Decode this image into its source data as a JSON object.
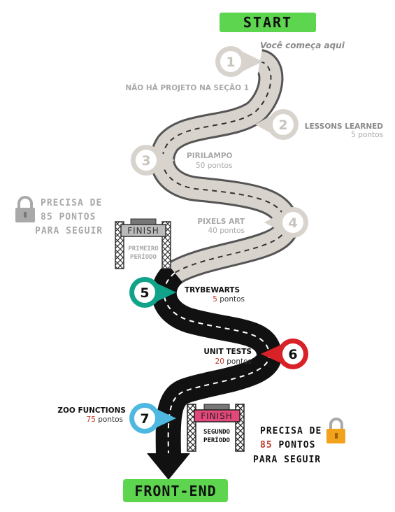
{
  "start_label": "START",
  "end_label": "FRONT-END",
  "intro": "Você começa aqui",
  "steps": [
    {
      "num": "1",
      "title": "NÃO HÁ PROJETO NA SEÇÃO 1",
      "points": "",
      "color": "#d8d4cd"
    },
    {
      "num": "2",
      "title": "LESSONS LEARNED",
      "points": "5 pontos",
      "color": "#d8d4cd"
    },
    {
      "num": "3",
      "title": "PIRILAMPO",
      "points": "50 pontos",
      "color": "#d8d4cd"
    },
    {
      "num": "4",
      "title": "PIXELS ART",
      "points": "40 pontos",
      "color": "#d8d4cd"
    },
    {
      "num": "5",
      "title": "TRYBEWARTS",
      "points_value": "5",
      "points_unit": "pontos",
      "color": "#11a38a"
    },
    {
      "num": "6",
      "title": "UNIT TESTS",
      "points_value": "20",
      "points_unit": "pontos",
      "color": "#d92128"
    },
    {
      "num": "7",
      "title": "ZOO FUNCTIONS",
      "points_value": "75",
      "points_unit": "pontos",
      "color": "#4fb8e0"
    }
  ],
  "lock1": {
    "line1": "PRECISA DE",
    "line2_num": "85",
    "line2_rest": "PONTOS",
    "line3": "PARA SEGUIR"
  },
  "lock2": {
    "line1": "PRECISA DE",
    "line2_num": "85",
    "line2_rest": "PONTOS",
    "line3": "PARA SEGUIR"
  },
  "gate1": {
    "banner": "FINISH",
    "line1": "PRIMEIRO",
    "line2": "PERÍODO"
  },
  "gate2": {
    "banner": "FINISH",
    "line1": "SEGUNDO",
    "line2": "PERÍODO"
  },
  "colors": {
    "green": "#5dd54f",
    "gray_road": "#d8d4cd",
    "road_dark": "#111111",
    "red_points": "#c0392b",
    "lock_gray": "#a9a9a9",
    "lock_orange": "#f2a31b"
  }
}
